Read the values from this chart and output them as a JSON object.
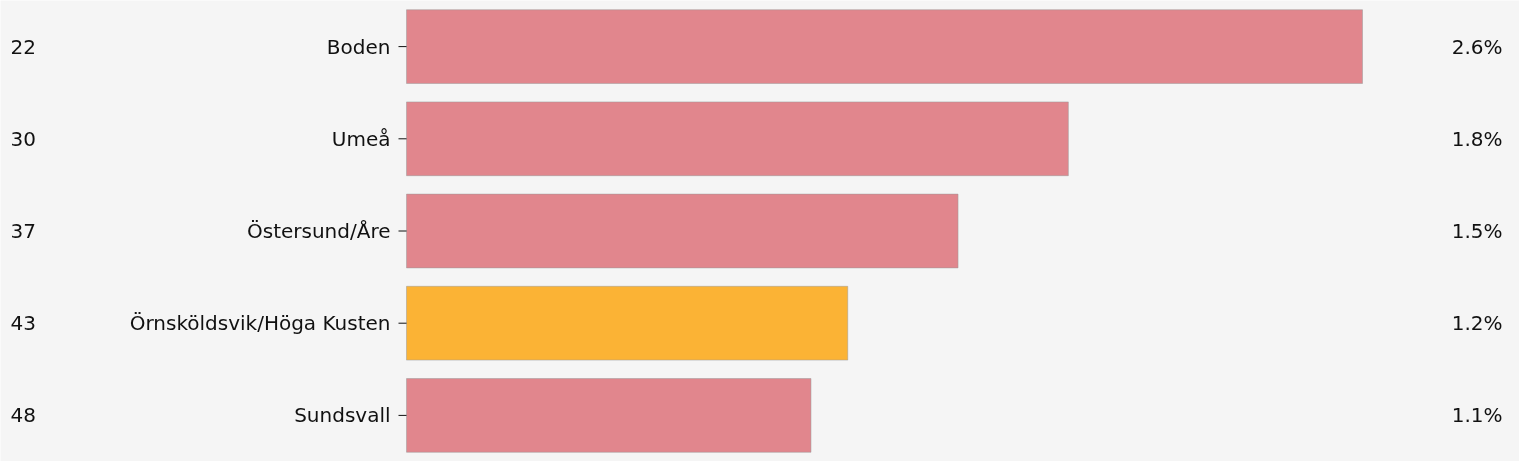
{
  "chart_data": {
    "type": "bar",
    "orientation": "horizontal",
    "categories": [
      "Boden",
      "Umeå",
      "Östersund/Åre",
      "Örnsköldsvik/Höga Kusten",
      "Sundsvall"
    ],
    "values": [
      2.6,
      1.8,
      1.5,
      1.2,
      1.1
    ],
    "colors": [
      "#e1868d",
      "#e1868d",
      "#e1868d",
      "#fbb335",
      "#e1868d"
    ],
    "value_labels": [
      "2.6%",
      "1.8%",
      "1.5%",
      "1.2%",
      "1.1%"
    ],
    "annotations": [
      "22",
      "30",
      "37",
      "43",
      "48"
    ]
  }
}
